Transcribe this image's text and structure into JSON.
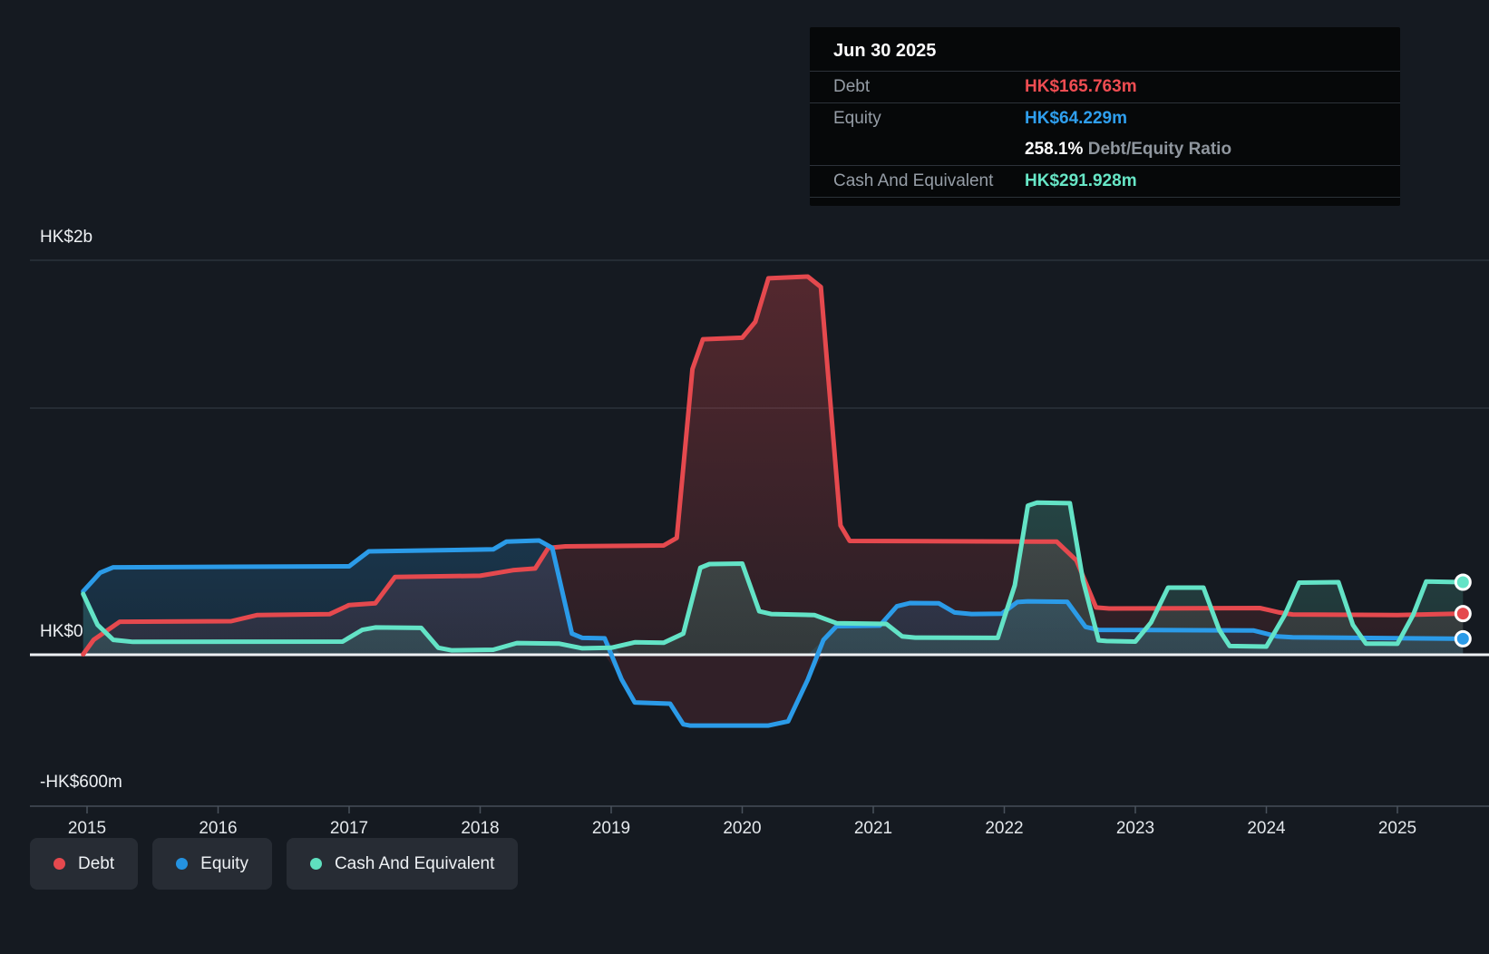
{
  "tooltip": {
    "date": "Jun 30 2025",
    "debt_label": "Debt",
    "debt_value": "HK$165.763m",
    "equity_label": "Equity",
    "equity_value": "HK$64.229m",
    "ratio_value": "258.1%",
    "ratio_label": " Debt/Equity Ratio",
    "cash_label": "Cash And Equivalent",
    "cash_value": "HK$291.928m"
  },
  "legend": {
    "debt": "Debt",
    "equity": "Equity",
    "cash": "Cash And Equivalent"
  },
  "colors": {
    "background": "#151a21",
    "debt": "#e5494e",
    "equity": "#2b9be8",
    "cash": "#63e3c6",
    "zero_line": "#edf0f3",
    "gridline": "#2b323b"
  },
  "chart_data": {
    "type": "area",
    "currency": "HK$",
    "unit": "millions (HK$m)",
    "grid": "horizontal",
    "legend_position": "bottom-left",
    "y_axis": {
      "labels": [
        "HK$2b",
        "HK$0",
        "-HK$600m"
      ],
      "label_values": [
        2000,
        0,
        -600
      ],
      "zero_line": true
    },
    "x_axis": {
      "years": [
        2015,
        2016,
        2017,
        2018,
        2019,
        2020,
        2021,
        2022,
        2023,
        2024,
        2025
      ]
    },
    "latest_point": {
      "date": "Jun 30 2025",
      "debt": 165.763,
      "equity": 64.229,
      "cash_and_equivalent": 291.928,
      "debt_equity_ratio_pct": 258.1
    },
    "series": [
      {
        "name": "Debt",
        "color": "#e5494e",
        "points": [
          [
            2014.97,
            2
          ],
          [
            2015.05,
            60
          ],
          [
            2015.25,
            133
          ],
          [
            2016.1,
            135
          ],
          [
            2016.3,
            160
          ],
          [
            2016.85,
            163
          ],
          [
            2017.0,
            200
          ],
          [
            2017.2,
            207
          ],
          [
            2017.35,
            313
          ],
          [
            2018.0,
            318
          ],
          [
            2018.25,
            340
          ],
          [
            2018.42,
            347
          ],
          [
            2018.52,
            430
          ],
          [
            2018.65,
            436
          ],
          [
            2019.4,
            440
          ],
          [
            2019.5,
            470
          ],
          [
            2019.62,
            1150
          ],
          [
            2019.7,
            1270
          ],
          [
            2020.0,
            1276
          ],
          [
            2020.1,
            1340
          ],
          [
            2020.2,
            1515
          ],
          [
            2020.5,
            1522
          ],
          [
            2020.6,
            1480
          ],
          [
            2020.75,
            520
          ],
          [
            2020.82,
            458
          ],
          [
            2022.4,
            455
          ],
          [
            2022.55,
            380
          ],
          [
            2022.7,
            190
          ],
          [
            2022.8,
            186
          ],
          [
            2023.95,
            188
          ],
          [
            2024.1,
            170
          ],
          [
            2024.2,
            162
          ],
          [
            2025.0,
            160
          ],
          [
            2025.5,
            165.763
          ]
        ]
      },
      {
        "name": "Equity",
        "color": "#2b9be8",
        "points": [
          [
            2014.97,
            255
          ],
          [
            2015.1,
            330
          ],
          [
            2015.2,
            352
          ],
          [
            2017.0,
            356
          ],
          [
            2017.15,
            416
          ],
          [
            2018.1,
            424
          ],
          [
            2018.2,
            455
          ],
          [
            2018.45,
            460
          ],
          [
            2018.55,
            430
          ],
          [
            2018.7,
            85
          ],
          [
            2018.78,
            68
          ],
          [
            2018.95,
            66
          ],
          [
            2019.08,
            -100
          ],
          [
            2019.18,
            -192
          ],
          [
            2019.45,
            -197
          ],
          [
            2019.55,
            -280
          ],
          [
            2019.6,
            -285
          ],
          [
            2020.2,
            -285
          ],
          [
            2020.35,
            -268
          ],
          [
            2020.5,
            -100
          ],
          [
            2020.62,
            60
          ],
          [
            2020.72,
            115
          ],
          [
            2021.05,
            117
          ],
          [
            2021.18,
            195
          ],
          [
            2021.28,
            208
          ],
          [
            2021.5,
            207
          ],
          [
            2021.62,
            170
          ],
          [
            2021.75,
            164
          ],
          [
            2021.98,
            165
          ],
          [
            2022.1,
            212
          ],
          [
            2022.18,
            215
          ],
          [
            2022.48,
            213
          ],
          [
            2022.62,
            112
          ],
          [
            2022.72,
            100
          ],
          [
            2023.9,
            98
          ],
          [
            2024.08,
            74
          ],
          [
            2024.2,
            70
          ],
          [
            2025.5,
            64.229
          ]
        ]
      },
      {
        "name": "Cash And Equivalent",
        "color": "#63e3c6",
        "points": [
          [
            2014.97,
            245
          ],
          [
            2015.08,
            120
          ],
          [
            2015.2,
            60
          ],
          [
            2015.35,
            52
          ],
          [
            2016.95,
            53
          ],
          [
            2017.1,
            100
          ],
          [
            2017.2,
            110
          ],
          [
            2017.55,
            108
          ],
          [
            2017.68,
            28
          ],
          [
            2017.78,
            18
          ],
          [
            2018.1,
            20
          ],
          [
            2018.28,
            47
          ],
          [
            2018.6,
            45
          ],
          [
            2018.78,
            26
          ],
          [
            2019.0,
            28
          ],
          [
            2019.18,
            50
          ],
          [
            2019.4,
            48
          ],
          [
            2019.55,
            85
          ],
          [
            2019.68,
            350
          ],
          [
            2019.75,
            365
          ],
          [
            2020.0,
            367
          ],
          [
            2020.13,
            175
          ],
          [
            2020.22,
            164
          ],
          [
            2020.55,
            160
          ],
          [
            2020.72,
            127
          ],
          [
            2021.1,
            124
          ],
          [
            2021.22,
            74
          ],
          [
            2021.32,
            69
          ],
          [
            2021.95,
            68
          ],
          [
            2022.08,
            280
          ],
          [
            2022.18,
            600
          ],
          [
            2022.25,
            612
          ],
          [
            2022.5,
            610
          ],
          [
            2022.6,
            300
          ],
          [
            2022.72,
            58
          ],
          [
            2022.78,
            55
          ],
          [
            2023.0,
            53
          ],
          [
            2023.12,
            130
          ],
          [
            2023.25,
            270
          ],
          [
            2023.52,
            270
          ],
          [
            2023.64,
            100
          ],
          [
            2023.72,
            35
          ],
          [
            2024.0,
            33
          ],
          [
            2024.14,
            160
          ],
          [
            2024.25,
            290
          ],
          [
            2024.55,
            292
          ],
          [
            2024.66,
            120
          ],
          [
            2024.76,
            45
          ],
          [
            2025.0,
            44
          ],
          [
            2025.12,
            160
          ],
          [
            2025.22,
            295
          ],
          [
            2025.5,
            291.928
          ]
        ]
      }
    ]
  }
}
